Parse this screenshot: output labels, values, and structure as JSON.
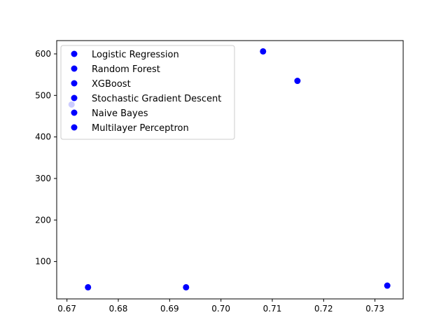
{
  "chart_data": {
    "type": "scatter",
    "title": "",
    "xlabel": "",
    "ylabel": "",
    "xlim": [
      0.668,
      0.7355
    ],
    "ylim": [
      10,
      632
    ],
    "xticks": [
      0.67,
      0.68,
      0.69,
      0.7,
      0.71,
      0.72,
      0.73
    ],
    "xtick_labels": [
      "0.67",
      "0.68",
      "0.69",
      "0.70",
      "0.71",
      "0.72",
      "0.73"
    ],
    "yticks": [
      100,
      200,
      300,
      400,
      500,
      600
    ],
    "ytick_labels": [
      "100",
      "200",
      "300",
      "400",
      "500",
      "600"
    ],
    "grid": false,
    "legend_position": "upper-left",
    "marker_color": "#0000ff",
    "series": [
      {
        "name": "Logistic Regression",
        "x": [
          0.7082
        ],
        "y": [
          606
        ]
      },
      {
        "name": "Random Forest",
        "x": [
          0.7149
        ],
        "y": [
          535
        ]
      },
      {
        "name": "XGBoost",
        "x": [
          0.6709
        ],
        "y": [
          478
        ]
      },
      {
        "name": "Stochastic Gradient Descent",
        "x": [
          0.6741
        ],
        "y": [
          38
        ]
      },
      {
        "name": "Naive Bayes",
        "x": [
          0.6932
        ],
        "y": [
          38
        ]
      },
      {
        "name": "Multilayer Perceptron",
        "x": [
          0.7324
        ],
        "y": [
          42
        ]
      }
    ]
  }
}
